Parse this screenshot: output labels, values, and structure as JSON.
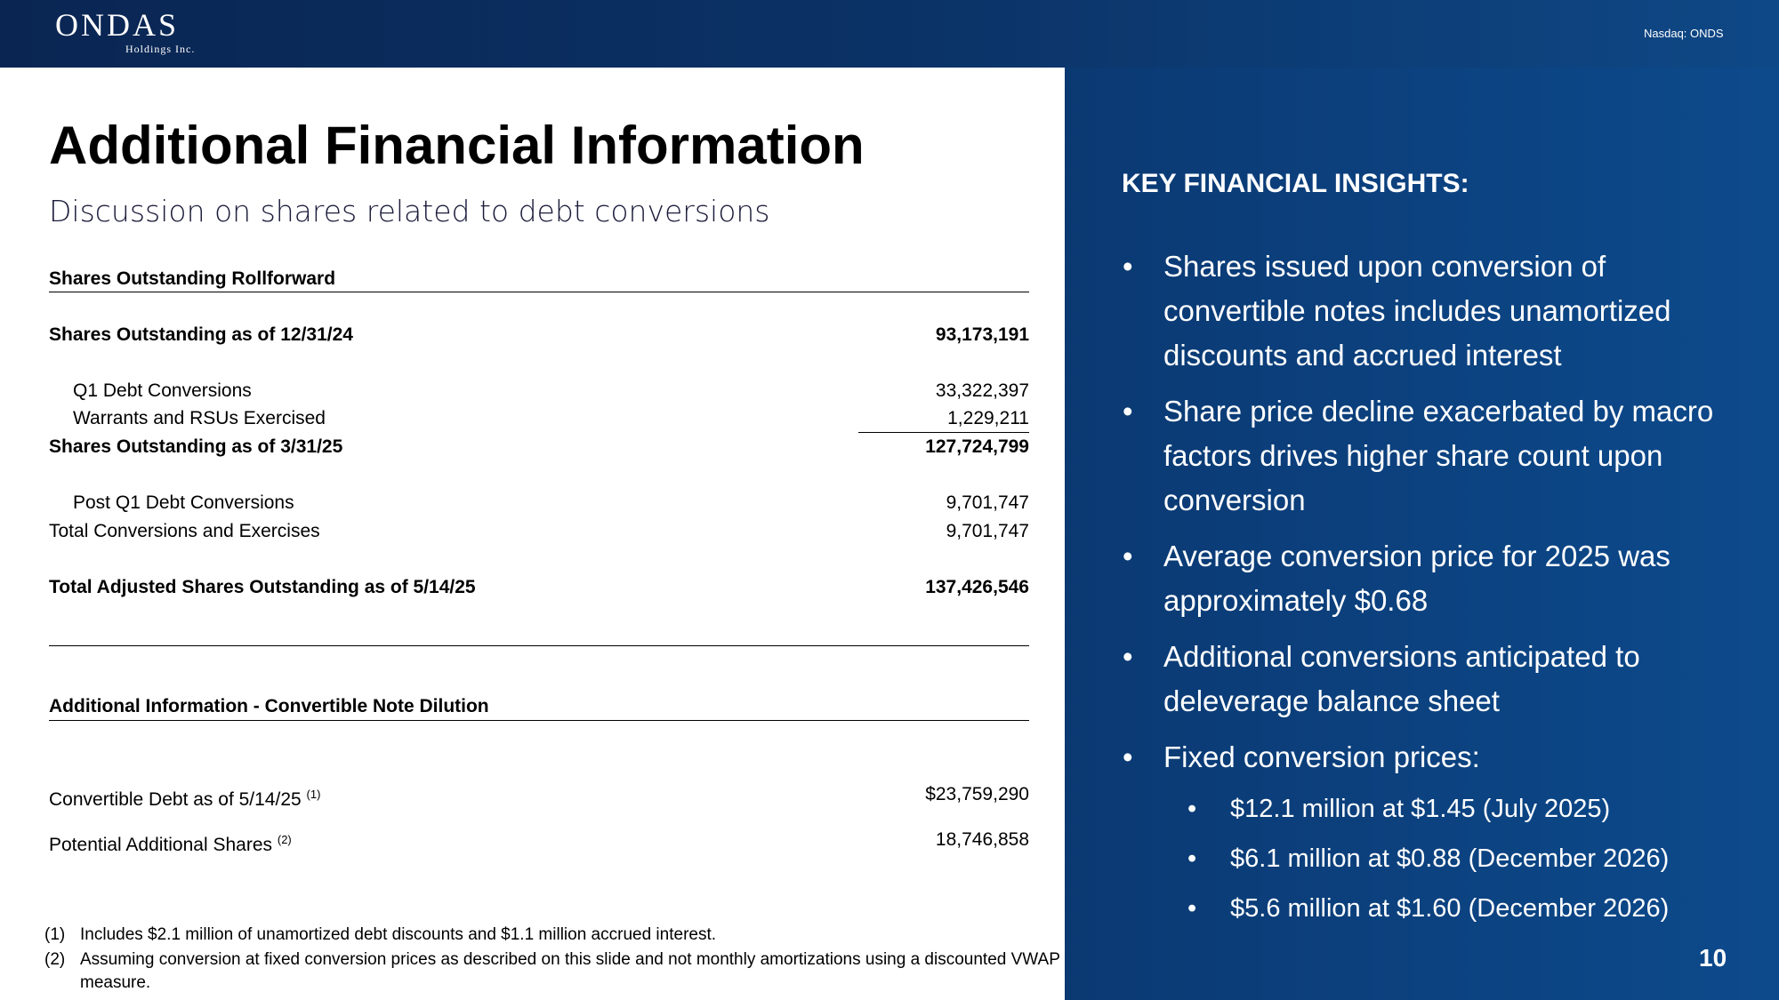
{
  "header": {
    "logo_main": "ONDAS",
    "logo_sub": "Holdings Inc.",
    "ticker": "Nasdaq: ONDS"
  },
  "main": {
    "title": "Additional Financial Information",
    "subtitle": "Discussion on shares related to debt conversions",
    "rollforward": {
      "heading": "Shares Outstanding Rollforward",
      "rows": [
        {
          "label": "Shares Outstanding as of 12/31/24",
          "value": "93,173,191"
        },
        {
          "label": "Q1 Debt Conversions",
          "value": "33,322,397"
        },
        {
          "label": "Warrants and RSUs Exercised",
          "value": "1,229,211"
        },
        {
          "label": "Shares Outstanding as of 3/31/25",
          "value": "127,724,799"
        },
        {
          "label": "Post Q1 Debt Conversions",
          "value": "9,701,747"
        },
        {
          "label": "Total Conversions and Exercises",
          "value": "9,701,747"
        },
        {
          "label": "Total Adjusted Shares Outstanding as of 5/14/25",
          "value": "137,426,546"
        }
      ]
    },
    "dilution": {
      "heading": "Additional Information - Convertible Note Dilution",
      "rows": [
        {
          "label": "Convertible Debt as of 5/14/25",
          "note": "(1)",
          "value": "$23,759,290"
        },
        {
          "label": "Potential Additional Shares",
          "note": "(2)",
          "value": "18,746,858"
        }
      ]
    },
    "footnotes": [
      {
        "n": "(1)",
        "text": "Includes $2.1 million of unamortized debt discounts and $1.1 million accrued interest."
      },
      {
        "n": "(2)",
        "text": "Assuming conversion at fixed conversion prices as described on this slide and not monthly amortizations using a discounted VWAP measure."
      }
    ]
  },
  "insights": {
    "title": "KEY FINANCIAL INSIGHTS:",
    "bullet": "•",
    "items": [
      "Shares issued upon conversion of convertible notes includes unamortized discounts and accrued interest",
      "Share price decline exacerbated by macro factors drives higher share count upon conversion",
      "Average conversion price for 2025 was approximately $0.68",
      "Additional conversions anticipated to deleverage balance sheet",
      "Fixed conversion prices:"
    ],
    "sub_items": [
      "$12.1 million at $1.45 (July 2025)",
      "$6.1 million at $0.88 (December 2026)",
      "$5.6 million at $1.60 (December 2026)"
    ]
  },
  "page_number": "10",
  "colors": {
    "header": "#0a2552",
    "panel_right": "#0b3a75",
    "text": "#000000"
  }
}
